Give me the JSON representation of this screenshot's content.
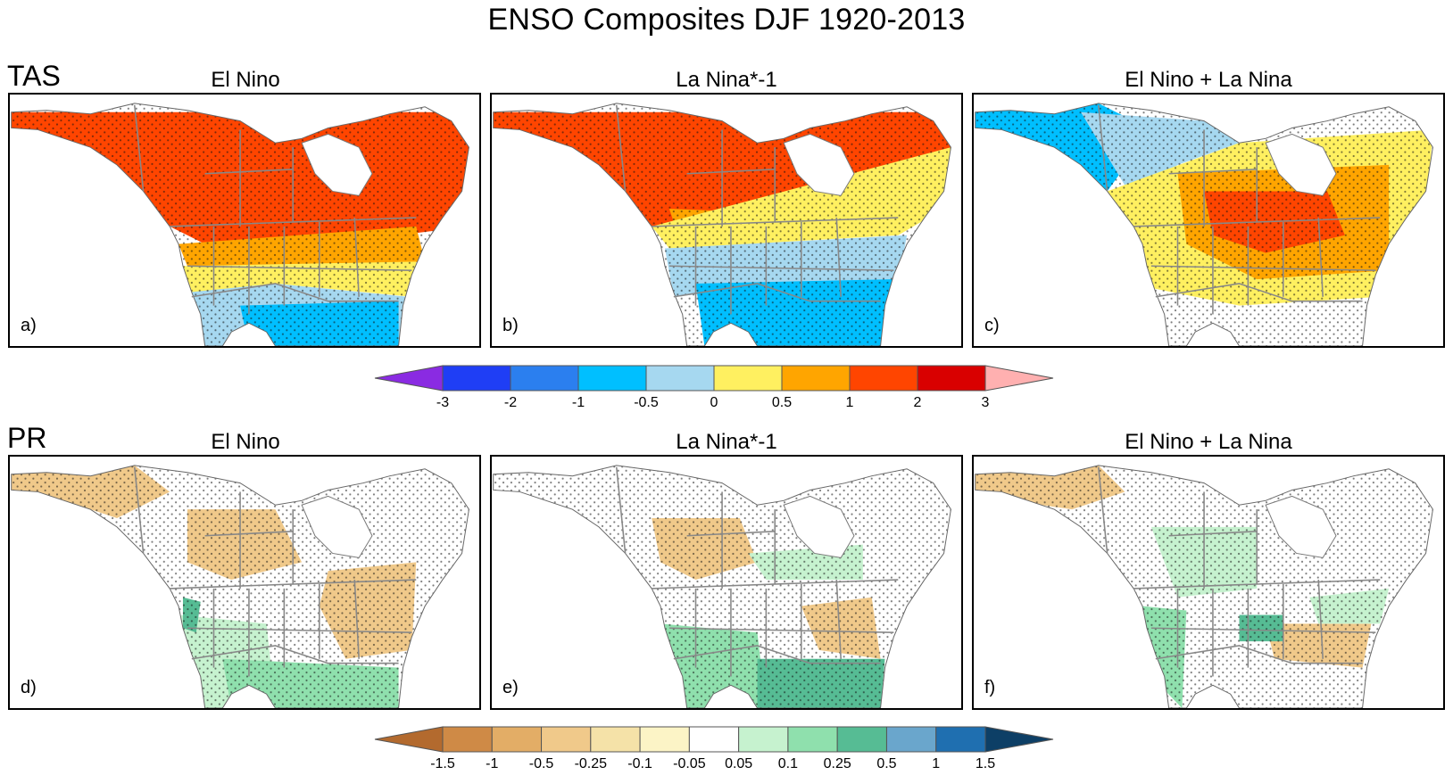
{
  "figure": {
    "title": "ENSO Composites DJF 1920-2013",
    "rows": [
      {
        "label": "TAS",
        "panels": [
          {
            "title": "El Nino",
            "letter": "a)"
          },
          {
            "title": "La Nina*-1",
            "letter": "b)"
          },
          {
            "title": "El Nino + La Nina",
            "letter": "c)"
          }
        ]
      },
      {
        "label": "PR",
        "panels": [
          {
            "title": "El Nino",
            "letter": "d)"
          },
          {
            "title": "La Nina*-1",
            "letter": "e)"
          },
          {
            "title": "El Nino + La Nina",
            "letter": "f)"
          }
        ]
      }
    ]
  },
  "tas_colorbar": {
    "labels": [
      "-3",
      "-2",
      "-1",
      "-0.5",
      "0",
      "0.5",
      "1",
      "2",
      "3"
    ],
    "colors": [
      "#8a2be2",
      "#1f3ef5",
      "#2b7fef",
      "#00bfff",
      "#a6d8f0",
      "#fff060",
      "#ffa500",
      "#ff4500",
      "#d90000",
      "#ffb0b0"
    ]
  },
  "pr_colorbar": {
    "labels": [
      "-1.5",
      "-1",
      "-0.5",
      "-0.25",
      "-0.1",
      "-0.05",
      "0.05",
      "0.1",
      "0.25",
      "0.5",
      "1",
      "1.5"
    ],
    "colors": [
      "#b36a2e",
      "#cf8a46",
      "#e3ad66",
      "#f0c98a",
      "#f5e2a8",
      "#fcf4c6",
      "#ffffff",
      "#c6f2cf",
      "#8fe0ad",
      "#56bc94",
      "#6aa6cc",
      "#1f6fb0",
      "#0d3f66"
    ]
  },
  "land_colors": {
    "tas": [
      "#ff4500",
      "#ffa500",
      "#fff060",
      "#a6d8f0",
      "#00bfff"
    ],
    "pr": [
      "#f0c98a",
      "#ffffff",
      "#c6f2cf",
      "#8fe0ad",
      "#56bc94"
    ]
  }
}
